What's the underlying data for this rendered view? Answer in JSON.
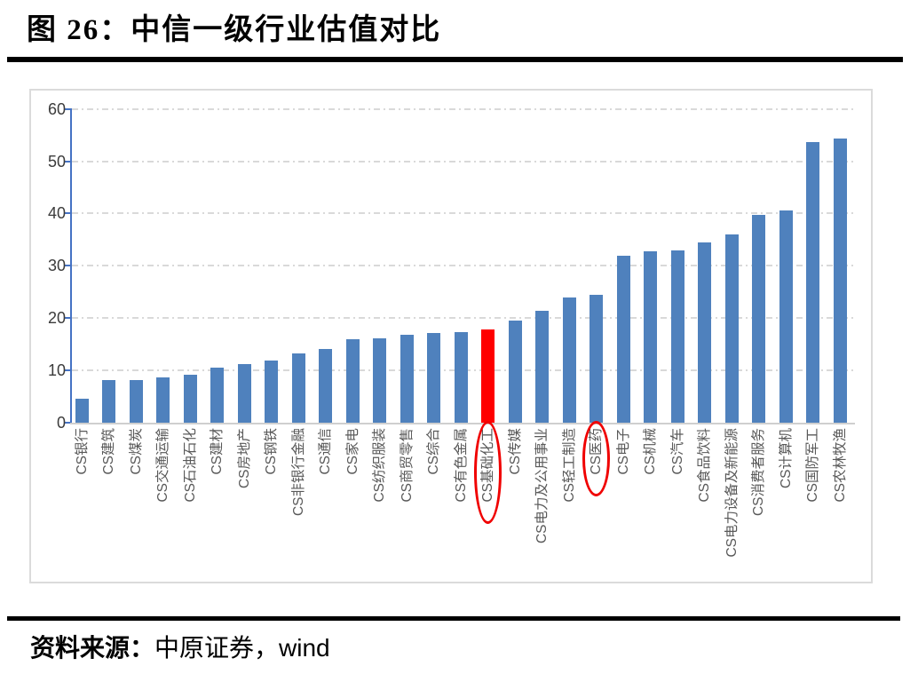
{
  "figure": {
    "title": "图 26：中信一级行业估值对比",
    "source_label": "资料来源：",
    "source_value": "中原证券，wind"
  },
  "chart_data": {
    "type": "bar",
    "title": "中信一级行业估值对比",
    "categories": [
      "CS银行",
      "CS建筑",
      "CS煤炭",
      "CS交通运输",
      "CS石油石化",
      "CS建材",
      "CS房地产",
      "CS钢铁",
      "CS非银行金融",
      "CS通信",
      "CS家电",
      "CS纺织服装",
      "CS商贸零售",
      "CS综合",
      "CS有色金属",
      "CS基础化工",
      "CS传媒",
      "CS电力及公用事业",
      "CS轻工制造",
      "CS医药",
      "CS电子",
      "CS机械",
      "CS汽车",
      "CS食品饮料",
      "CS电力设备及新能源",
      "CS消费者服务",
      "CS计算机",
      "CS国防军工",
      "CS农林牧渔"
    ],
    "values": [
      4.5,
      8.1,
      8.2,
      8.6,
      9.2,
      10.5,
      11.2,
      11.8,
      13.3,
      14.1,
      15.9,
      16.2,
      16.8,
      17.1,
      17.3,
      17.8,
      19.5,
      21.4,
      24.0,
      24.5,
      31.9,
      32.8,
      33.0,
      34.4,
      36.0,
      39.8,
      40.5,
      53.6,
      54.3
    ],
    "highlight_bar_category": "CS基础化工",
    "circled_label_categories": [
      "CS基础化工",
      "CS医药"
    ],
    "xlabel": "",
    "ylabel": "",
    "ylim": [
      0,
      60
    ],
    "yticks": [
      0,
      10,
      20,
      30,
      40,
      50,
      60
    ],
    "grid": "horizontal-dashed",
    "legend": "none",
    "colors": {
      "bar": "#4F81BD",
      "highlight_bar": "#FF0000",
      "axis_line": "#4472C4",
      "gridline": "#D9D9D9",
      "baseline": "#CFCFCF",
      "tick_label": "#3B3B3B",
      "category_label": "#595959",
      "annotation_circle": "#F00000"
    }
  }
}
